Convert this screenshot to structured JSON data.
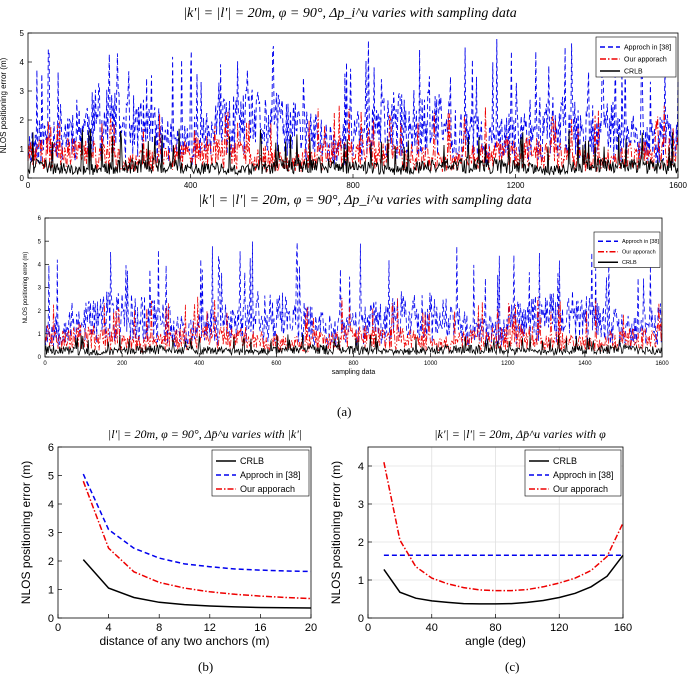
{
  "figure": {
    "caption_a": "(a)",
    "caption_b": "(b)",
    "caption_c": "(c)"
  },
  "chart_data": [
    {
      "id": "a1",
      "type": "line",
      "title": "|k'| = |l'| = 20m, φ = 90°, Δp_i^u varies with sampling data",
      "xlabel": "",
      "ylabel": "NLOS positioning error (m)",
      "xlim": [
        0,
        1600
      ],
      "ylim": [
        0,
        5
      ],
      "xticks": [
        0,
        400,
        800,
        1200,
        1600
      ],
      "yticks": [
        0,
        1,
        2,
        3,
        4,
        5
      ],
      "legend": [
        "Approch in [38]",
        "Our apporach",
        "CRLB"
      ],
      "legend_position": "top-right",
      "series": [
        {
          "name": "Approch in [38]",
          "color": "#0000ee",
          "style": "dashed",
          "mean": 1.7,
          "peak": 4.8
        },
        {
          "name": "Our apporach",
          "color": "#ee0000",
          "style": "dashdot",
          "mean": 0.8,
          "peak": 2.5
        },
        {
          "name": "CRLB",
          "color": "#000000",
          "style": "solid",
          "mean": 0.4,
          "peak": 1.7
        }
      ]
    },
    {
      "id": "a2",
      "type": "line",
      "title": "|k'| = |l'| = 20m, φ = 90°, Δp_i^u varies with sampling data",
      "xlabel": "sampling data",
      "ylabel": "NLOS positioning error (m)",
      "xlim": [
        0,
        1600
      ],
      "ylim": [
        0,
        6
      ],
      "xticks": [
        0,
        200,
        400,
        600,
        800,
        1000,
        1200,
        1400,
        1600
      ],
      "yticks": [
        0,
        1,
        2,
        3,
        4,
        5,
        6
      ],
      "legend": [
        "Approch in [38]",
        "Our apporach",
        "CRLB"
      ],
      "legend_position": "top-right",
      "series": [
        {
          "name": "Approch in [38]",
          "color": "#0000ee",
          "style": "dashed",
          "mean": 1.6,
          "peak": 5.0
        },
        {
          "name": "Our apporach",
          "color": "#ee0000",
          "style": "dashdot",
          "mean": 0.8,
          "peak": 2.6
        },
        {
          "name": "CRLB",
          "color": "#000000",
          "style": "solid",
          "mean": 0.3,
          "peak": 1.0
        }
      ]
    },
    {
      "id": "b",
      "type": "line",
      "title": "|l'| = 20m, φ = 90°, Δp̄^u varies with |k'|",
      "xlabel": "distance of any two anchors (m)",
      "ylabel": "NLOS positioning error (m)",
      "xlim": [
        0,
        20
      ],
      "ylim": [
        0,
        6
      ],
      "xticks": [
        0,
        4,
        8,
        12,
        16,
        20
      ],
      "yticks": [
        0,
        1,
        2,
        3,
        4,
        5,
        6
      ],
      "legend_position": "top-right",
      "x": [
        2,
        4,
        6,
        8,
        10,
        12,
        14,
        16,
        18,
        20
      ],
      "series": [
        {
          "name": "CRLB",
          "color": "#000000",
          "style": "solid",
          "values": [
            2.05,
            1.05,
            0.72,
            0.55,
            0.47,
            0.42,
            0.39,
            0.37,
            0.36,
            0.35
          ]
        },
        {
          "name": "Approch in [38]",
          "color": "#0000ee",
          "style": "dashed",
          "values": [
            5.05,
            3.1,
            2.45,
            2.1,
            1.9,
            1.8,
            1.72,
            1.68,
            1.65,
            1.63
          ]
        },
        {
          "name": "Our apporach",
          "color": "#ee0000",
          "style": "dashdot",
          "values": [
            4.8,
            2.45,
            1.62,
            1.25,
            1.05,
            0.92,
            0.83,
            0.77,
            0.72,
            0.68
          ]
        }
      ]
    },
    {
      "id": "c",
      "type": "line",
      "title": "|k'| = |l'| = 20m, Δp̄^u varies with φ",
      "xlabel": "angle (deg)",
      "ylabel": "NLOS positioning error (m)",
      "xlim": [
        0,
        160
      ],
      "ylim": [
        0,
        4.5
      ],
      "xticks": [
        0,
        40,
        80,
        120,
        160
      ],
      "yticks": [
        0,
        1,
        2,
        3,
        4
      ],
      "grid": true,
      "legend_position": "top-right",
      "x": [
        10,
        20,
        30,
        40,
        50,
        60,
        70,
        80,
        90,
        100,
        110,
        120,
        130,
        140,
        150,
        160
      ],
      "series": [
        {
          "name": "CRLB",
          "color": "#000000",
          "style": "solid",
          "values": [
            1.28,
            0.68,
            0.52,
            0.45,
            0.41,
            0.38,
            0.37,
            0.37,
            0.38,
            0.41,
            0.46,
            0.54,
            0.65,
            0.82,
            1.1,
            1.65
          ]
        },
        {
          "name": "Approch in [38]",
          "color": "#0000ee",
          "style": "dashed",
          "values": [
            1.65,
            1.65,
            1.65,
            1.65,
            1.65,
            1.65,
            1.65,
            1.65,
            1.65,
            1.65,
            1.65,
            1.65,
            1.65,
            1.65,
            1.65,
            1.65
          ]
        },
        {
          "name": "Our apporach",
          "color": "#ee0000",
          "style": "dashdot",
          "values": [
            4.1,
            2.05,
            1.35,
            1.05,
            0.9,
            0.8,
            0.74,
            0.72,
            0.72,
            0.75,
            0.82,
            0.92,
            1.05,
            1.25,
            1.62,
            2.5
          ]
        }
      ]
    }
  ]
}
